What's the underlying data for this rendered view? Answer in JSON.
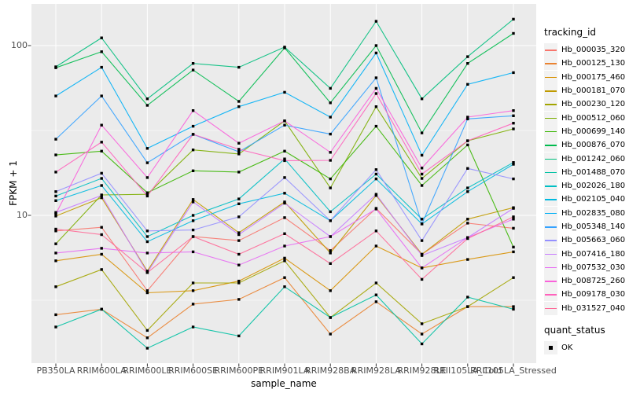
{
  "figure": {
    "background": "#FFFFFF",
    "panel_background": "#EBEBEB",
    "gridline_color": "#FFFFFF",
    "axis_text_color": "#4D4D4D",
    "tick_mark_color": "#333333",
    "marker_color": "#000000",
    "legend_key_background": "#F2F2F2"
  },
  "chart_data": {
    "type": "line",
    "title": "",
    "xlabel": "sample_name",
    "ylabel": "FPKM + 1",
    "y_scale": "log10",
    "ylim": [
      1.35,
      176
    ],
    "y_ticks": [
      {
        "label": "100",
        "value": 100
      },
      {
        "label": "10",
        "value": 10
      }
    ],
    "y_minor_ticks": [
      31.623,
      3.162
    ],
    "grid": true,
    "legend_position": "right",
    "marker": "black-square",
    "categories": [
      "PB350LA",
      "RRIM600LA",
      "RRIM600LE",
      "RRIM600SE",
      "RRIM600PE",
      "RRIM901LA",
      "RRIM928BA",
      "RRIM928LA",
      "RRIM928LE",
      "RRII105LA_Cold",
      "RRII105LA_Stressed"
    ],
    "series": [
      {
        "name": "Hb_000035_320",
        "color": "#F8766D",
        "values": [
          8.1,
          8.5,
          3.6,
          7.5,
          7.1,
          9.7,
          6.2,
          11.0,
          5.9,
          9.0,
          8.4
        ]
      },
      {
        "name": "Hb_000125_130",
        "color": "#EA8331",
        "values": [
          2.6,
          2.8,
          1.9,
          3.0,
          3.2,
          4.3,
          2.0,
          3.1,
          2.0,
          2.9,
          2.9
        ]
      },
      {
        "name": "Hb_000175_460",
        "color": "#D89000",
        "values": [
          5.4,
          5.9,
          3.5,
          3.6,
          4.1,
          5.6,
          3.6,
          6.6,
          4.9,
          5.5,
          6.1
        ]
      },
      {
        "name": "Hb_000181_070",
        "color": "#C09B00",
        "values": [
          9.9,
          12.7,
          4.7,
          12.4,
          7.9,
          12.0,
          6.0,
          13.1,
          5.9,
          9.5,
          11.1
        ]
      },
      {
        "name": "Hb_000230_120",
        "color": "#A3A500",
        "values": [
          3.8,
          4.8,
          2.1,
          4.0,
          4.0,
          5.4,
          2.5,
          4.0,
          2.3,
          2.9,
          4.3
        ]
      },
      {
        "name": "Hb_000512_060",
        "color": "#7CAE00",
        "values": [
          6.8,
          13.2,
          13.3,
          24.3,
          23.0,
          36.0,
          14.5,
          43.7,
          16.5,
          27.5,
          32.3
        ]
      },
      {
        "name": "Hb_000699_140",
        "color": "#39B600",
        "values": [
          22.7,
          23.9,
          13.6,
          18.3,
          18.0,
          23.9,
          16.4,
          33.5,
          15.0,
          26.0,
          6.5
        ]
      },
      {
        "name": "Hb_000876_070",
        "color": "#00BB4E",
        "values": [
          74.0,
          92.0,
          44.5,
          71.8,
          46.9,
          97.0,
          46.0,
          100.0,
          30.6,
          78.5,
          118.0
        ]
      },
      {
        "name": "Hb_001242_060",
        "color": "#00BF7D",
        "values": [
          75.0,
          111.0,
          48.6,
          78.5,
          74.5,
          98.0,
          56.0,
          139.0,
          48.6,
          86.0,
          143.0
        ]
      },
      {
        "name": "Hb_001488_070",
        "color": "#00C1A3",
        "values": [
          2.2,
          2.8,
          1.65,
          2.2,
          1.95,
          3.8,
          2.5,
          3.4,
          1.75,
          3.3,
          2.8
        ]
      },
      {
        "name": "Hb_002026_180",
        "color": "#00BFC4",
        "values": [
          13.0,
          16.5,
          7.5,
          10.0,
          12.5,
          21.5,
          10.5,
          17.5,
          9.5,
          14.5,
          20.5
        ]
      },
      {
        "name": "Hb_002105_040",
        "color": "#00BAE0",
        "values": [
          12.2,
          15.0,
          7.0,
          9.3,
          11.7,
          13.5,
          9.3,
          16.4,
          8.9,
          13.8,
          20.0
        ]
      },
      {
        "name": "Hb_002835_080",
        "color": "#00B0F6",
        "values": [
          50.5,
          74.5,
          24.8,
          33.5,
          43.7,
          53.1,
          37.9,
          90.5,
          22.6,
          59.1,
          69.3
        ]
      },
      {
        "name": "Hb_005348_140",
        "color": "#35A2FF",
        "values": [
          28.1,
          50.5,
          20.4,
          30.0,
          23.7,
          34.0,
          30.1,
          64.6,
          8.9,
          37.0,
          38.6
        ]
      },
      {
        "name": "Hb_005663_060",
        "color": "#9590FF",
        "values": [
          13.8,
          17.7,
          8.1,
          8.2,
          9.8,
          16.7,
          9.3,
          18.6,
          7.1,
          18.9,
          16.4
        ]
      },
      {
        "name": "Hb_007416_180",
        "color": "#C77CFF",
        "values": [
          10.4,
          13.1,
          4.6,
          12.0,
          7.7,
          11.8,
          7.5,
          13.3,
          5.8,
          7.4,
          11.0
        ]
      },
      {
        "name": "Hb_007532_030",
        "color": "#E76BF3",
        "values": [
          6.0,
          6.4,
          6.0,
          6.1,
          5.1,
          6.6,
          7.5,
          10.9,
          4.9,
          7.4,
          9.5
        ]
      },
      {
        "name": "Hb_008725_260",
        "color": "#FA62DB",
        "values": [
          10.2,
          34.0,
          16.7,
          41.4,
          26.6,
          36.0,
          23.5,
          56.0,
          19.0,
          37.9,
          41.4
        ]
      },
      {
        "name": "Hb_009178_030",
        "color": "#FF62BC",
        "values": [
          18.0,
          27.0,
          13.0,
          30.0,
          24.5,
          21.0,
          21.1,
          52.2,
          17.5,
          27.5,
          34.9
        ]
      },
      {
        "name": "Hb_031527_040",
        "color": "#FF6A98",
        "values": [
          8.3,
          7.7,
          4.6,
          7.5,
          5.9,
          7.8,
          5.2,
          8.1,
          4.2,
          7.3,
          9.8
        ]
      }
    ]
  },
  "legend": {
    "tracking_title": "tracking_id",
    "quant_title": "quant_status",
    "quant_items": [
      {
        "label": "OK"
      }
    ]
  }
}
